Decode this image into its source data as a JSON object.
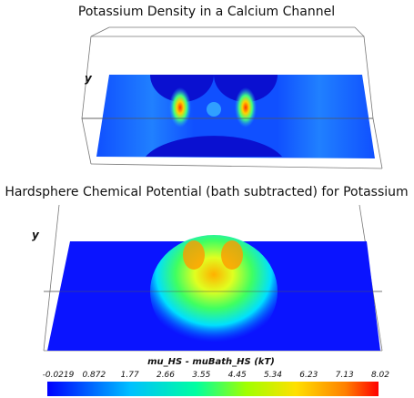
{
  "top_plot": {
    "title": "Potassium Density in a Calcium Channel",
    "axis_label": "y"
  },
  "bottom_plot": {
    "title": "Hardsphere Chemical Potential (bath subtracted) for Potassium",
    "axis_label": "y"
  },
  "colorbar": {
    "title": "mu_HS - muBath_HS (kT)",
    "ticks": [
      "-0.0219",
      "0.872",
      "1.77",
      "2.66",
      "3.55",
      "4.45",
      "5.34",
      "6.23",
      "7.13",
      "8.02"
    ]
  }
}
